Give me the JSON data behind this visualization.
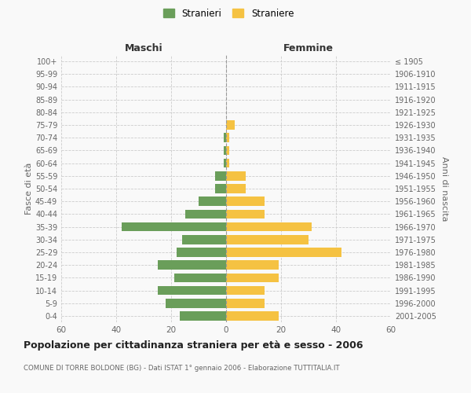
{
  "age_groups": [
    "0-4",
    "5-9",
    "10-14",
    "15-19",
    "20-24",
    "25-29",
    "30-34",
    "35-39",
    "40-44",
    "45-49",
    "50-54",
    "55-59",
    "60-64",
    "65-69",
    "70-74",
    "75-79",
    "80-84",
    "85-89",
    "90-94",
    "95-99",
    "100+"
  ],
  "birth_years": [
    "2001-2005",
    "1996-2000",
    "1991-1995",
    "1986-1990",
    "1981-1985",
    "1976-1980",
    "1971-1975",
    "1966-1970",
    "1961-1965",
    "1956-1960",
    "1951-1955",
    "1946-1950",
    "1941-1945",
    "1936-1940",
    "1931-1935",
    "1926-1930",
    "1921-1925",
    "1916-1920",
    "1911-1915",
    "1906-1910",
    "≤ 1905"
  ],
  "males": [
    17,
    22,
    25,
    19,
    25,
    18,
    16,
    38,
    15,
    10,
    4,
    4,
    1,
    1,
    1,
    0,
    0,
    0,
    0,
    0,
    0
  ],
  "females": [
    19,
    14,
    14,
    19,
    19,
    42,
    30,
    31,
    14,
    14,
    7,
    7,
    1,
    1,
    1,
    3,
    0,
    0,
    0,
    0,
    0
  ],
  "male_color": "#6a9e5a",
  "female_color": "#f5c242",
  "background_color": "#f9f9f9",
  "grid_color": "#cccccc",
  "title": "Popolazione per cittadinanza straniera per età e sesso - 2006",
  "subtitle": "COMUNE DI TORRE BOLDONE (BG) - Dati ISTAT 1° gennaio 2006 - Elaborazione TUTTITALIA.IT",
  "xlabel_left": "Maschi",
  "xlabel_right": "Femmine",
  "ylabel_left": "Fasce di età",
  "ylabel_right": "Anni di nascita",
  "legend_male": "Stranieri",
  "legend_female": "Straniere",
  "xlim": 60
}
